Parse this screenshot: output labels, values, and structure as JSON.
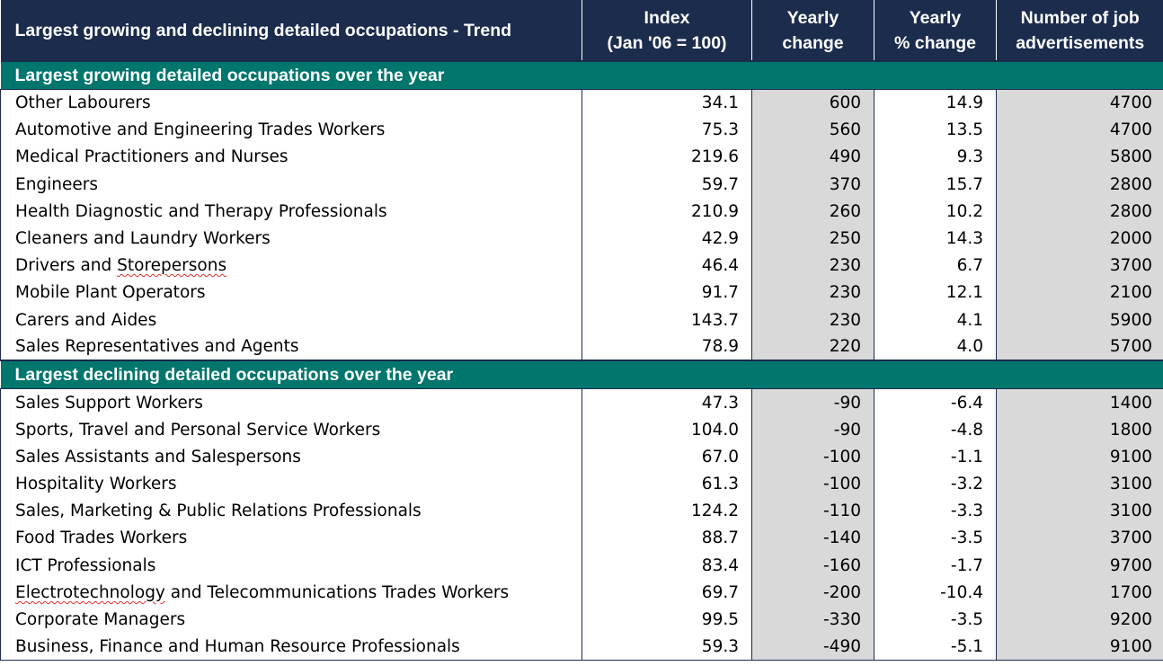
{
  "header": {
    "title": "Largest growing and declining detailed occupations - Trend",
    "col_index_line1": "Index",
    "col_index_line2": "(Jan '06 = 100)",
    "col_change_line1": "Yearly",
    "col_change_line2": "change",
    "col_pct_line1": "Yearly",
    "col_pct_line2": "% change",
    "col_ads_line1": "Number of job",
    "col_ads_line2": "advertisements"
  },
  "growing": {
    "label": "Largest growing detailed occupations over the year",
    "rows": [
      {
        "occ": "Other Labourers",
        "index": "34.1",
        "change": "600",
        "pct": "14.9",
        "ads": "4700"
      },
      {
        "occ": "Automotive and Engineering Trades Workers",
        "index": "75.3",
        "change": "560",
        "pct": "13.5",
        "ads": "4700"
      },
      {
        "occ": "Medical Practitioners and Nurses",
        "index": "219.6",
        "change": "490",
        "pct": "9.3",
        "ads": "5800"
      },
      {
        "occ": "Engineers",
        "index": "59.7",
        "change": "370",
        "pct": "15.7",
        "ads": "2800"
      },
      {
        "occ": "Health Diagnostic and Therapy Professionals",
        "index": "210.9",
        "change": "260",
        "pct": "10.2",
        "ads": "2800"
      },
      {
        "occ": "Cleaners and Laundry Workers",
        "index": "42.9",
        "change": "250",
        "pct": "14.3",
        "ads": "2000"
      },
      {
        "occ_pre": "Drivers and ",
        "occ_sq": "Storepersons",
        "occ_post": "",
        "index": "46.4",
        "change": "230",
        "pct": "6.7",
        "ads": "3700"
      },
      {
        "occ": "Mobile Plant Operators",
        "index": "91.7",
        "change": "230",
        "pct": "12.1",
        "ads": "2100"
      },
      {
        "occ": "Carers and Aides",
        "index": "143.7",
        "change": "230",
        "pct": "4.1",
        "ads": "5900"
      },
      {
        "occ": "Sales Representatives and Agents",
        "index": "78.9",
        "change": "220",
        "pct": "4.0",
        "ads": "5700"
      }
    ]
  },
  "declining": {
    "label": "Largest declining detailed occupations over the year",
    "rows": [
      {
        "occ": "Sales Support Workers",
        "index": "47.3",
        "change": "-90",
        "pct": "-6.4",
        "ads": "1400"
      },
      {
        "occ": "Sports, Travel and Personal Service Workers",
        "index": "104.0",
        "change": "-90",
        "pct": "-4.8",
        "ads": "1800"
      },
      {
        "occ": "Sales Assistants and Salespersons",
        "index": "67.0",
        "change": "-100",
        "pct": "-1.1",
        "ads": "9100"
      },
      {
        "occ": "Hospitality Workers",
        "index": "61.3",
        "change": "-100",
        "pct": "-3.2",
        "ads": "3100"
      },
      {
        "occ": "Sales, Marketing & Public Relations Professionals",
        "index": "124.2",
        "change": "-110",
        "pct": "-3.3",
        "ads": "3100"
      },
      {
        "occ": "Food Trades Workers",
        "index": "88.7",
        "change": "-140",
        "pct": "-3.5",
        "ads": "3700"
      },
      {
        "occ": "ICT Professionals",
        "index": "83.4",
        "change": "-160",
        "pct": "-1.7",
        "ads": "9700"
      },
      {
        "occ_pre": "",
        "occ_sq": "Electrotechnology",
        "occ_post": " and Telecommunications Trades Workers",
        "index": "69.7",
        "change": "-200",
        "pct": "-10.4",
        "ads": "1700"
      },
      {
        "occ": "Corporate Managers",
        "index": "99.5",
        "change": "-330",
        "pct": "-3.5",
        "ads": "9200"
      },
      {
        "occ": "Business, Finance and Human Resource Professionals",
        "index": "59.3",
        "change": "-490",
        "pct": "-5.1",
        "ads": "9100"
      }
    ]
  },
  "colors": {
    "header_bg": "#1b2c4d",
    "section_bg": "#00766d",
    "shaded_cell_bg": "#d9d9d9",
    "spellcheck_underline": "#e0302b"
  }
}
